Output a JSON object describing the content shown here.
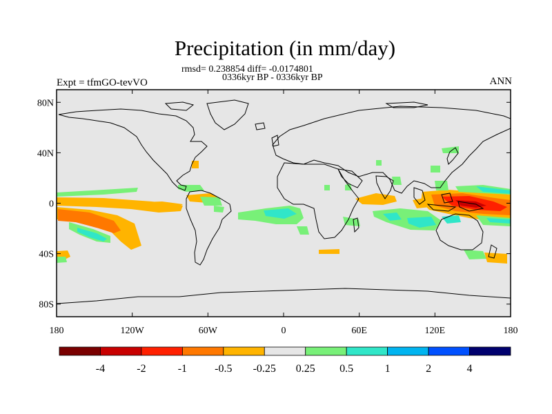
{
  "header": {
    "title": "Precipitation (in mm/day)",
    "stats_line": "rmsd= 0.238854 diff= -0.0174801",
    "period_line": "0336kyr BP - 0336kyr BP",
    "experiment_label": "Expt = tfmGO-tevVO",
    "season_label": "ANN"
  },
  "map": {
    "projection": "cylindrical equidistant",
    "lon_range": [
      -180,
      180
    ],
    "lat_range": [
      -90,
      90
    ],
    "land_ocean_fill": "#e6e6e6",
    "coastline_color": "#000000",
    "lat_ticks": [
      {
        "value": 80,
        "label": "80N"
      },
      {
        "value": 40,
        "label": "40N"
      },
      {
        "value": 0,
        "label": "0"
      },
      {
        "value": -40,
        "label": "40S"
      },
      {
        "value": -80,
        "label": "80S"
      }
    ],
    "lon_ticks": [
      {
        "value": -180,
        "label": "180"
      },
      {
        "value": -120,
        "label": "120W"
      },
      {
        "value": -60,
        "label": "60W"
      },
      {
        "value": 0,
        "label": "0"
      },
      {
        "value": 60,
        "label": "60E"
      },
      {
        "value": 120,
        "label": "120E"
      },
      {
        "value": 180,
        "label": "180"
      }
    ]
  },
  "colorbar": {
    "colors": [
      "#7a0000",
      "#c80000",
      "#ff2000",
      "#ff7800",
      "#ffb400",
      "#e6e6e6",
      "#78f078",
      "#30e6c8",
      "#00b4f0",
      "#0050ff",
      "#00006e"
    ],
    "labels": [
      "-4",
      "-2",
      "-1",
      "-0.5",
      "-0.25",
      "0.25",
      "0.5",
      "1",
      "2",
      "4"
    ]
  }
}
